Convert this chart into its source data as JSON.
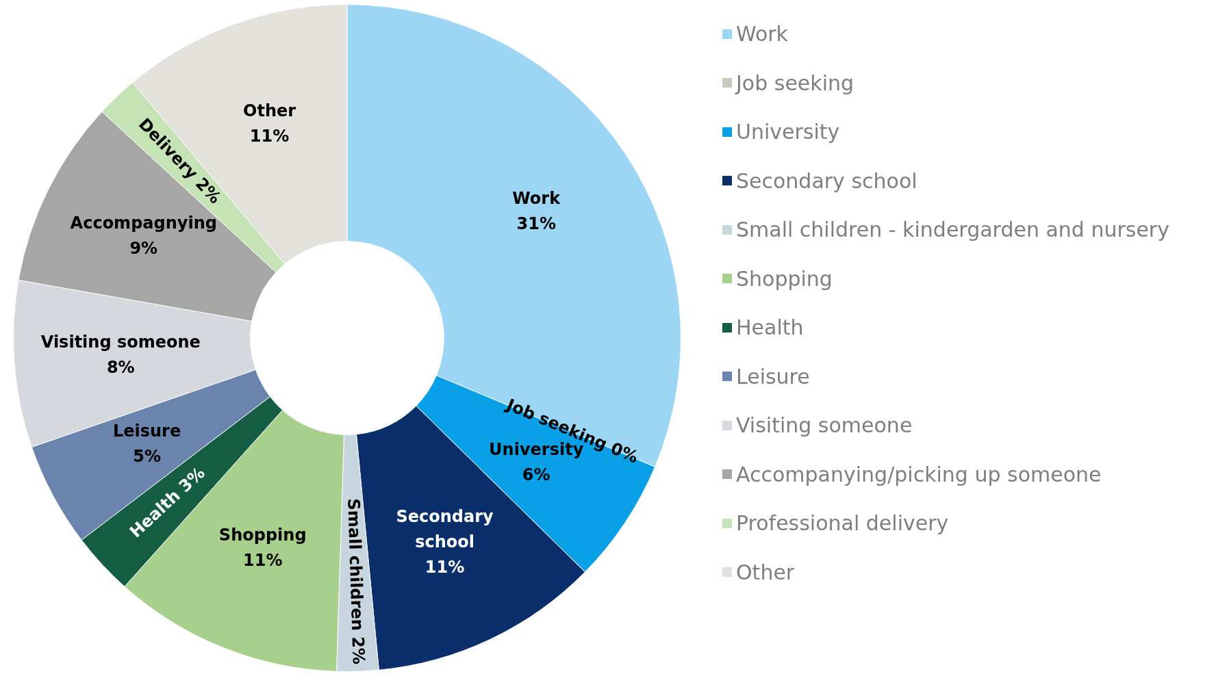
{
  "chart_data": {
    "type": "donut",
    "categories": [
      "Work",
      "Job seeking",
      "University",
      "Secondary school",
      "Small children - kindergarden and nursery",
      "Shopping",
      "Health",
      "Leisure",
      "Visiting someone",
      "Accompanying/picking up someone",
      "Professional delivery",
      "Other"
    ],
    "values": [
      31,
      0,
      6,
      11,
      2,
      11,
      3,
      5,
      8,
      9,
      2,
      11
    ],
    "colors": [
      "#9dd6f5",
      "#c9c8bd",
      "#0aa0e8",
      "#0a2f6b",
      "#c7d5df",
      "#a8d08d",
      "#155e44",
      "#6b84ad",
      "#d5d8dc",
      "#a6a6a6",
      "#c5e3b5",
      "#e3e1db"
    ],
    "value_labels": [
      "Work\n31%",
      "Job seeking 0%",
      "University\n6%",
      "Secondary\nschool\n11%",
      "Small children 2%",
      "Shopping\n11%",
      "Health 3%",
      "Leisure\n5%",
      "Visiting someone\n8%",
      "Accompagnying\n9%",
      "Delivery 2%",
      "Other\n11%"
    ],
    "legend": "right"
  }
}
